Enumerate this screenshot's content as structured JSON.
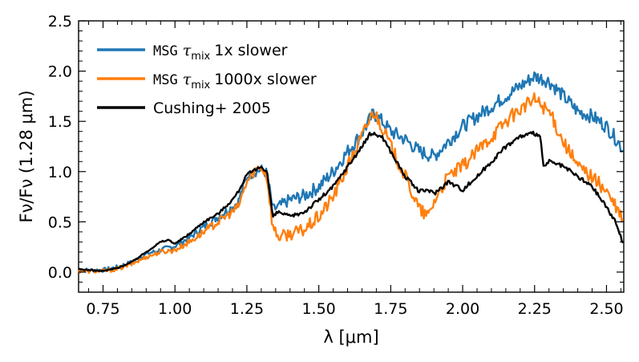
{
  "chart_data": {
    "type": "line",
    "title": "",
    "xlabel": "λ [μm]",
    "ylabel": "Fν/Fν (1.28 μm)",
    "xlim": [
      0.665,
      2.56
    ],
    "ylim": [
      -0.2,
      2.5
    ],
    "xticks": [
      0.75,
      1.0,
      1.25,
      1.5,
      1.75,
      2.0,
      2.25,
      2.5
    ],
    "xtick_labels": [
      "0.75",
      "1.00",
      "1.25",
      "1.50",
      "1.75",
      "2.00",
      "2.25",
      "2.50"
    ],
    "yticks": [
      0.0,
      0.5,
      1.0,
      1.5,
      2.0,
      2.5
    ],
    "ytick_labels": [
      "0.0",
      "0.5",
      "1.0",
      "1.5",
      "2.0",
      "2.5"
    ],
    "legend_position": "top-left",
    "series": [
      {
        "name": "MSG τmix 1x slower",
        "legend_code": "MSG",
        "legend_symbol": "τ",
        "legend_sub": "mix",
        "legend_suffix": "1x slower",
        "color": "#1f77b4",
        "noise": 0.05,
        "points": [
          [
            0.665,
            0.02
          ],
          [
            0.7,
            0.02
          ],
          [
            0.75,
            0.02
          ],
          [
            0.8,
            0.05
          ],
          [
            0.85,
            0.1
          ],
          [
            0.9,
            0.18
          ],
          [
            0.95,
            0.22
          ],
          [
            1.0,
            0.26
          ],
          [
            1.05,
            0.34
          ],
          [
            1.1,
            0.45
          ],
          [
            1.15,
            0.55
          ],
          [
            1.2,
            0.65
          ],
          [
            1.22,
            0.7
          ],
          [
            1.25,
            0.95
          ],
          [
            1.28,
            1.0
          ],
          [
            1.3,
            1.02
          ],
          [
            1.32,
            0.98
          ],
          [
            1.34,
            0.62
          ],
          [
            1.36,
            0.65
          ],
          [
            1.4,
            0.72
          ],
          [
            1.45,
            0.76
          ],
          [
            1.5,
            0.85
          ],
          [
            1.55,
            1.0
          ],
          [
            1.6,
            1.2
          ],
          [
            1.65,
            1.38
          ],
          [
            1.69,
            1.58
          ],
          [
            1.72,
            1.5
          ],
          [
            1.75,
            1.4
          ],
          [
            1.8,
            1.32
          ],
          [
            1.85,
            1.2
          ],
          [
            1.9,
            1.15
          ],
          [
            1.95,
            1.3
          ],
          [
            2.0,
            1.45
          ],
          [
            2.05,
            1.55
          ],
          [
            2.1,
            1.65
          ],
          [
            2.15,
            1.75
          ],
          [
            2.2,
            1.85
          ],
          [
            2.25,
            1.95
          ],
          [
            2.3,
            1.9
          ],
          [
            2.35,
            1.75
          ],
          [
            2.4,
            1.6
          ],
          [
            2.45,
            1.55
          ],
          [
            2.5,
            1.45
          ],
          [
            2.54,
            1.3
          ],
          [
            2.56,
            1.2
          ]
        ]
      },
      {
        "name": "MSG τmix 1000x slower",
        "legend_code": "MSG",
        "legend_symbol": "τ",
        "legend_sub": "mix",
        "legend_suffix": "1000x slower",
        "color": "#ff7f0e",
        "noise": 0.05,
        "points": [
          [
            0.665,
            0.01
          ],
          [
            0.7,
            0.01
          ],
          [
            0.75,
            0.01
          ],
          [
            0.8,
            0.03
          ],
          [
            0.85,
            0.08
          ],
          [
            0.9,
            0.15
          ],
          [
            0.95,
            0.2
          ],
          [
            1.0,
            0.22
          ],
          [
            1.05,
            0.3
          ],
          [
            1.1,
            0.4
          ],
          [
            1.15,
            0.5
          ],
          [
            1.2,
            0.6
          ],
          [
            1.22,
            0.65
          ],
          [
            1.25,
            0.9
          ],
          [
            1.28,
            1.02
          ],
          [
            1.3,
            1.05
          ],
          [
            1.32,
            0.95
          ],
          [
            1.34,
            0.45
          ],
          [
            1.36,
            0.35
          ],
          [
            1.4,
            0.38
          ],
          [
            1.45,
            0.42
          ],
          [
            1.5,
            0.55
          ],
          [
            1.55,
            0.75
          ],
          [
            1.6,
            1.05
          ],
          [
            1.65,
            1.35
          ],
          [
            1.69,
            1.6
          ],
          [
            1.72,
            1.45
          ],
          [
            1.75,
            1.25
          ],
          [
            1.8,
            0.95
          ],
          [
            1.85,
            0.62
          ],
          [
            1.88,
            0.55
          ],
          [
            1.9,
            0.7
          ],
          [
            1.95,
            0.95
          ],
          [
            2.0,
            1.05
          ],
          [
            2.05,
            1.2
          ],
          [
            2.1,
            1.35
          ],
          [
            2.15,
            1.5
          ],
          [
            2.2,
            1.62
          ],
          [
            2.25,
            1.72
          ],
          [
            2.3,
            1.6
          ],
          [
            2.35,
            1.3
          ],
          [
            2.4,
            1.05
          ],
          [
            2.45,
            0.95
          ],
          [
            2.5,
            0.8
          ],
          [
            2.54,
            0.6
          ],
          [
            2.56,
            0.5
          ]
        ]
      },
      {
        "name": "Cushing+ 2005",
        "legend_label": "Cushing+ 2005",
        "color": "#000000",
        "noise": 0.015,
        "points": [
          [
            0.665,
            0.03
          ],
          [
            0.7,
            0.02
          ],
          [
            0.75,
            0.01
          ],
          [
            0.8,
            0.04
          ],
          [
            0.85,
            0.1
          ],
          [
            0.9,
            0.2
          ],
          [
            0.95,
            0.3
          ],
          [
            0.98,
            0.32
          ],
          [
            1.0,
            0.28
          ],
          [
            1.05,
            0.38
          ],
          [
            1.1,
            0.5
          ],
          [
            1.15,
            0.58
          ],
          [
            1.2,
            0.72
          ],
          [
            1.22,
            0.8
          ],
          [
            1.25,
            0.97
          ],
          [
            1.27,
            1.0
          ],
          [
            1.3,
            1.05
          ],
          [
            1.32,
            1.0
          ],
          [
            1.34,
            0.55
          ],
          [
            1.36,
            0.6
          ],
          [
            1.4,
            0.55
          ],
          [
            1.45,
            0.6
          ],
          [
            1.5,
            0.72
          ],
          [
            1.55,
            0.85
          ],
          [
            1.6,
            1.05
          ],
          [
            1.65,
            1.25
          ],
          [
            1.68,
            1.38
          ],
          [
            1.72,
            1.35
          ],
          [
            1.75,
            1.2
          ],
          [
            1.8,
            0.95
          ],
          [
            1.85,
            0.8
          ],
          [
            1.88,
            0.82
          ],
          [
            1.9,
            0.78
          ],
          [
            1.95,
            0.9
          ],
          [
            2.0,
            0.82
          ],
          [
            2.05,
            0.95
          ],
          [
            2.1,
            1.1
          ],
          [
            2.15,
            1.25
          ],
          [
            2.2,
            1.35
          ],
          [
            2.25,
            1.38
          ],
          [
            2.27,
            1.35
          ],
          [
            2.28,
            1.05
          ],
          [
            2.3,
            1.1
          ],
          [
            2.35,
            1.05
          ],
          [
            2.4,
            0.95
          ],
          [
            2.45,
            0.85
          ],
          [
            2.5,
            0.65
          ],
          [
            2.54,
            0.45
          ],
          [
            2.56,
            0.25
          ]
        ]
      }
    ]
  }
}
